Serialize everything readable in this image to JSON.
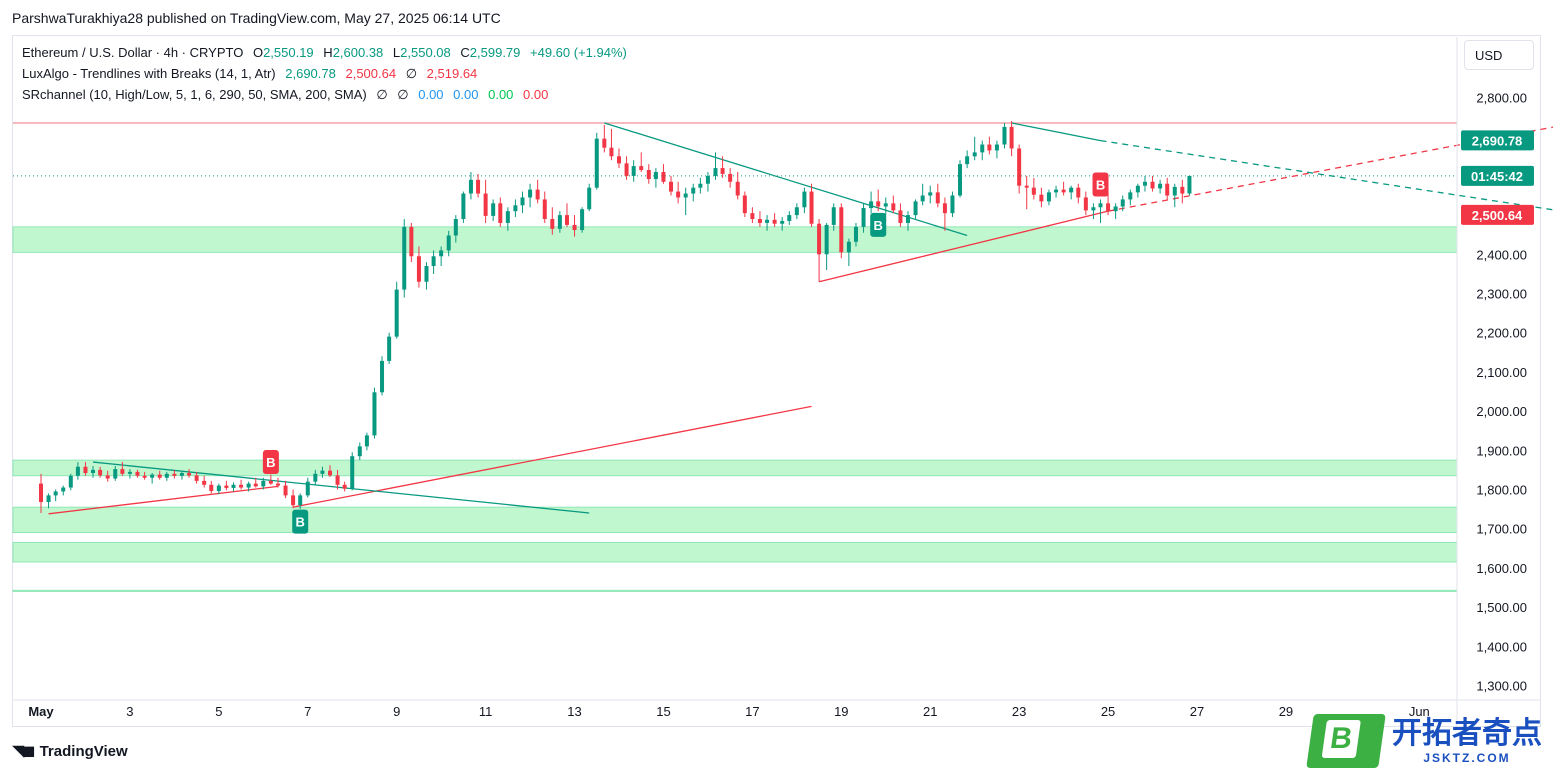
{
  "publisher_line": "ParshwaTurakhiya28 published on TradingView.com, May 27, 2025 06:14 UTC",
  "legend": {
    "symbol": "Ethereum / U.S. Dollar · 4h · CRYPTO",
    "o_label": "O",
    "o_value": "2,550.19",
    "h_label": "H",
    "h_value": "2,600.38",
    "l_label": "L",
    "l_value": "2,550.08",
    "c_label": "C",
    "c_value": "2,599.79",
    "change": "+49.60 (+1.94%)",
    "indicator1": "LuxAlgo - Trendlines with Breaks (14, 1, Atr)",
    "ind1_v1": "2,690.78",
    "ind1_v2": "2,500.64",
    "ind1_sym": "∅",
    "ind1_v3": "2,519.64",
    "indicator2": "SRchannel (10, High/Low, 5, 1, 6, 290, 50, SMA, 200, SMA)",
    "ind2_sym1": "∅",
    "ind2_sym2": "∅",
    "ind2_v1": "0.00",
    "ind2_v2": "0.00",
    "ind2_v3": "0.00",
    "ind2_v4": "0.00"
  },
  "currency_button": "USD",
  "branding": "TradingView",
  "watermark": {
    "logo_letter": "B",
    "name": "开拓者奇点",
    "url": "JSKTZ.COM"
  },
  "colors": {
    "up": "#089981",
    "down": "#f23645",
    "zone": "#b9f6ca",
    "resistance": "#f7a1a8"
  },
  "chart_data": {
    "type": "candlestick",
    "title": "Ethereum / U.S. Dollar · 4h · CRYPTO",
    "ylim": [
      1250,
      2900
    ],
    "xlim": [
      0,
      36
    ],
    "y_ticks": [
      2800,
      2700,
      2600,
      2500,
      2400,
      2300,
      2200,
      2100,
      2000,
      1900,
      1800,
      1700,
      1600,
      1500,
      1400,
      1300
    ],
    "y_tick_labels_extra": [
      "2,800.00",
      "2,400.00",
      "2,300.00",
      "2,200.00",
      "2,100.00",
      "2,000.00",
      "1,900.00",
      "1,800.00",
      "1,700.00",
      "1,600.00",
      "1,500.00",
      "1,400.00",
      "1,300.00"
    ],
    "x_ticks": [
      {
        "day": 1,
        "label": "May"
      },
      {
        "day": 3,
        "label": "3"
      },
      {
        "day": 5,
        "label": "5"
      },
      {
        "day": 7,
        "label": "7"
      },
      {
        "day": 9,
        "label": "9"
      },
      {
        "day": 11,
        "label": "11"
      },
      {
        "day": 13,
        "label": "13"
      },
      {
        "day": 15,
        "label": "15"
      },
      {
        "day": 17,
        "label": "17"
      },
      {
        "day": 19,
        "label": "19"
      },
      {
        "day": 21,
        "label": "21"
      },
      {
        "day": 23,
        "label": "23"
      },
      {
        "day": 25,
        "label": "25"
      },
      {
        "day": 27,
        "label": "27"
      },
      {
        "day": 29,
        "label": "29"
      },
      {
        "day": 32,
        "label": "Jun"
      }
    ],
    "candles": [
      [
        1.0,
        1815,
        1840,
        1740,
        1768
      ],
      [
        1.17,
        1768,
        1790,
        1752,
        1785
      ],
      [
        1.33,
        1785,
        1800,
        1770,
        1795
      ],
      [
        1.5,
        1795,
        1810,
        1785,
        1805
      ],
      [
        1.67,
        1805,
        1840,
        1798,
        1835
      ],
      [
        1.83,
        1835,
        1870,
        1825,
        1858
      ],
      [
        2.0,
        1858,
        1870,
        1835,
        1842
      ],
      [
        2.17,
        1842,
        1860,
        1830,
        1850
      ],
      [
        2.33,
        1850,
        1858,
        1830,
        1836
      ],
      [
        2.5,
        1836,
        1848,
        1820,
        1828
      ],
      [
        2.67,
        1828,
        1860,
        1822,
        1852
      ],
      [
        2.83,
        1852,
        1870,
        1835,
        1840
      ],
      [
        3.0,
        1840,
        1852,
        1828,
        1845
      ],
      [
        3.17,
        1845,
        1850,
        1830,
        1835
      ],
      [
        3.33,
        1835,
        1845,
        1825,
        1830
      ],
      [
        3.5,
        1830,
        1842,
        1815,
        1838
      ],
      [
        3.67,
        1838,
        1848,
        1825,
        1830
      ],
      [
        3.83,
        1830,
        1845,
        1822,
        1840
      ],
      [
        4.0,
        1840,
        1850,
        1828,
        1835
      ],
      [
        4.17,
        1835,
        1848,
        1825,
        1842
      ],
      [
        4.33,
        1842,
        1852,
        1830,
        1836
      ],
      [
        4.5,
        1836,
        1845,
        1815,
        1822
      ],
      [
        4.67,
        1822,
        1835,
        1805,
        1812
      ],
      [
        4.83,
        1812,
        1822,
        1790,
        1796
      ],
      [
        5.0,
        1796,
        1815,
        1788,
        1810
      ],
      [
        5.17,
        1810,
        1822,
        1798,
        1804
      ],
      [
        5.33,
        1804,
        1818,
        1795,
        1812
      ],
      [
        5.5,
        1812,
        1825,
        1800,
        1805
      ],
      [
        5.67,
        1805,
        1820,
        1795,
        1815
      ],
      [
        5.83,
        1815,
        1830,
        1805,
        1808
      ],
      [
        6.0,
        1808,
        1830,
        1800,
        1822
      ],
      [
        6.17,
        1822,
        1838,
        1812,
        1815
      ],
      [
        6.33,
        1815,
        1830,
        1805,
        1810
      ],
      [
        6.5,
        1810,
        1822,
        1778,
        1785
      ],
      [
        6.67,
        1785,
        1800,
        1752,
        1760
      ],
      [
        6.83,
        1760,
        1790,
        1750,
        1785
      ],
      [
        7.0,
        1785,
        1830,
        1780,
        1820
      ],
      [
        7.17,
        1820,
        1850,
        1812,
        1840
      ],
      [
        7.33,
        1840,
        1858,
        1830,
        1848
      ],
      [
        7.5,
        1848,
        1862,
        1832,
        1836
      ],
      [
        7.67,
        1836,
        1850,
        1800,
        1812
      ],
      [
        7.83,
        1812,
        1820,
        1795,
        1802
      ],
      [
        8.0,
        1802,
        1895,
        1798,
        1885
      ],
      [
        8.17,
        1885,
        1920,
        1875,
        1910
      ],
      [
        8.33,
        1910,
        1945,
        1900,
        1938
      ],
      [
        8.5,
        1938,
        2060,
        1930,
        2048
      ],
      [
        8.67,
        2048,
        2140,
        2040,
        2128
      ],
      [
        8.83,
        2128,
        2200,
        2120,
        2190
      ],
      [
        9.0,
        2190,
        2330,
        2185,
        2310
      ],
      [
        9.17,
        2310,
        2490,
        2290,
        2470
      ],
      [
        9.33,
        2470,
        2480,
        2380,
        2395
      ],
      [
        9.5,
        2395,
        2420,
        2315,
        2330
      ],
      [
        9.67,
        2330,
        2380,
        2310,
        2370
      ],
      [
        9.83,
        2370,
        2410,
        2350,
        2395
      ],
      [
        10.0,
        2395,
        2420,
        2370,
        2410
      ],
      [
        10.17,
        2410,
        2460,
        2395,
        2448
      ],
      [
        10.33,
        2448,
        2500,
        2430,
        2490
      ],
      [
        10.5,
        2490,
        2560,
        2480,
        2555
      ],
      [
        10.67,
        2555,
        2610,
        2540,
        2590
      ],
      [
        10.83,
        2590,
        2605,
        2545,
        2555
      ],
      [
        11.0,
        2555,
        2590,
        2480,
        2498
      ],
      [
        11.17,
        2498,
        2540,
        2485,
        2530
      ],
      [
        11.33,
        2530,
        2545,
        2470,
        2480
      ],
      [
        11.5,
        2480,
        2520,
        2460,
        2510
      ],
      [
        11.67,
        2510,
        2540,
        2495,
        2525
      ],
      [
        11.83,
        2525,
        2560,
        2505,
        2545
      ],
      [
        12.0,
        2545,
        2580,
        2520,
        2565
      ],
      [
        12.17,
        2565,
        2590,
        2530,
        2540
      ],
      [
        12.33,
        2540,
        2560,
        2480,
        2490
      ],
      [
        12.5,
        2490,
        2520,
        2450,
        2465
      ],
      [
        12.67,
        2465,
        2510,
        2455,
        2500
      ],
      [
        12.83,
        2500,
        2530,
        2470,
        2475
      ],
      [
        13.0,
        2475,
        2500,
        2445,
        2462
      ],
      [
        13.17,
        2462,
        2520,
        2455,
        2515
      ],
      [
        13.33,
        2515,
        2580,
        2510,
        2570
      ],
      [
        13.5,
        2570,
        2710,
        2565,
        2695
      ],
      [
        13.67,
        2695,
        2730,
        2660,
        2672
      ],
      [
        13.83,
        2672,
        2720,
        2640,
        2650
      ],
      [
        14.0,
        2650,
        2670,
        2620,
        2632
      ],
      [
        14.17,
        2632,
        2650,
        2590,
        2600
      ],
      [
        14.33,
        2600,
        2640,
        2585,
        2625
      ],
      [
        14.5,
        2625,
        2660,
        2610,
        2615
      ],
      [
        14.67,
        2615,
        2630,
        2580,
        2592
      ],
      [
        14.83,
        2592,
        2620,
        2570,
        2610
      ],
      [
        15.0,
        2610,
        2630,
        2580,
        2585
      ],
      [
        15.17,
        2585,
        2600,
        2550,
        2560
      ],
      [
        15.33,
        2560,
        2585,
        2530,
        2545
      ],
      [
        15.5,
        2545,
        2570,
        2500,
        2555
      ],
      [
        15.67,
        2555,
        2580,
        2535,
        2570
      ],
      [
        15.83,
        2570,
        2595,
        2555,
        2580
      ],
      [
        16.0,
        2580,
        2610,
        2560,
        2600
      ],
      [
        16.17,
        2600,
        2660,
        2590,
        2620
      ],
      [
        16.33,
        2620,
        2650,
        2595,
        2605
      ],
      [
        16.5,
        2605,
        2620,
        2570,
        2585
      ],
      [
        16.67,
        2585,
        2610,
        2540,
        2550
      ],
      [
        16.83,
        2550,
        2560,
        2495,
        2505
      ],
      [
        17.0,
        2505,
        2520,
        2480,
        2490
      ],
      [
        17.17,
        2490,
        2510,
        2470,
        2480
      ],
      [
        17.33,
        2480,
        2500,
        2460,
        2488
      ],
      [
        17.5,
        2488,
        2505,
        2470,
        2478
      ],
      [
        17.67,
        2478,
        2495,
        2460,
        2485
      ],
      [
        17.83,
        2485,
        2510,
        2475,
        2500
      ],
      [
        18.0,
        2500,
        2530,
        2490,
        2520
      ],
      [
        18.17,
        2520,
        2570,
        2505,
        2560
      ],
      [
        18.33,
        2560,
        2580,
        2470,
        2478
      ],
      [
        18.5,
        2478,
        2490,
        2330,
        2400
      ],
      [
        18.67,
        2400,
        2480,
        2360,
        2475
      ],
      [
        18.83,
        2475,
        2530,
        2460,
        2520
      ],
      [
        19.0,
        2520,
        2530,
        2390,
        2405
      ],
      [
        19.17,
        2405,
        2440,
        2370,
        2432
      ],
      [
        19.33,
        2432,
        2480,
        2420,
        2470
      ],
      [
        19.5,
        2470,
        2530,
        2455,
        2518
      ],
      [
        19.67,
        2518,
        2560,
        2505,
        2535
      ],
      [
        19.83,
        2535,
        2565,
        2510,
        2522
      ],
      [
        20.0,
        2522,
        2545,
        2500,
        2530
      ],
      [
        20.17,
        2530,
        2550,
        2505,
        2512
      ],
      [
        20.33,
        2512,
        2530,
        2470,
        2480
      ],
      [
        20.5,
        2480,
        2510,
        2460,
        2500
      ],
      [
        20.67,
        2500,
        2540,
        2490,
        2535
      ],
      [
        20.83,
        2535,
        2580,
        2525,
        2550
      ],
      [
        21.0,
        2550,
        2575,
        2530,
        2558
      ],
      [
        21.17,
        2558,
        2580,
        2520,
        2530
      ],
      [
        21.33,
        2530,
        2545,
        2460,
        2505
      ],
      [
        21.5,
        2505,
        2560,
        2495,
        2550
      ],
      [
        21.67,
        2550,
        2640,
        2545,
        2630
      ],
      [
        21.83,
        2630,
        2665,
        2620,
        2650
      ],
      [
        22.0,
        2650,
        2700,
        2640,
        2660
      ],
      [
        22.17,
        2660,
        2690,
        2640,
        2680
      ],
      [
        22.33,
        2680,
        2700,
        2655,
        2665
      ],
      [
        22.5,
        2665,
        2690,
        2645,
        2680
      ],
      [
        22.67,
        2680,
        2735,
        2670,
        2725
      ],
      [
        22.83,
        2725,
        2740,
        2650,
        2670
      ],
      [
        23.0,
        2670,
        2680,
        2555,
        2575
      ],
      [
        23.17,
        2575,
        2600,
        2515,
        2570
      ],
      [
        23.33,
        2570,
        2595,
        2540,
        2552
      ],
      [
        23.5,
        2552,
        2570,
        2520,
        2535
      ],
      [
        23.67,
        2535,
        2565,
        2525,
        2558
      ],
      [
        23.83,
        2558,
        2575,
        2545,
        2565
      ],
      [
        24.0,
        2565,
        2585,
        2550,
        2558
      ],
      [
        24.17,
        2558,
        2575,
        2540,
        2570
      ],
      [
        24.33,
        2570,
        2580,
        2530,
        2545
      ],
      [
        24.5,
        2545,
        2560,
        2500,
        2512
      ],
      [
        24.67,
        2512,
        2530,
        2490,
        2520
      ],
      [
        24.83,
        2520,
        2540,
        2480,
        2530
      ],
      [
        25.0,
        2530,
        2560,
        2500,
        2510
      ],
      [
        25.17,
        2510,
        2530,
        2490,
        2522
      ],
      [
        25.33,
        2522,
        2550,
        2510,
        2540
      ],
      [
        25.5,
        2540,
        2565,
        2525,
        2558
      ],
      [
        25.67,
        2558,
        2580,
        2545,
        2575
      ],
      [
        25.83,
        2575,
        2600,
        2560,
        2585
      ],
      [
        26.0,
        2585,
        2600,
        2560,
        2568
      ],
      [
        26.17,
        2568,
        2590,
        2555,
        2580
      ],
      [
        26.33,
        2580,
        2595,
        2540,
        2550
      ],
      [
        26.5,
        2550,
        2580,
        2520,
        2572
      ],
      [
        26.67,
        2572,
        2590,
        2530,
        2555
      ],
      [
        26.83,
        2555,
        2600,
        2550,
        2600
      ]
    ],
    "sr_zones": [
      {
        "low": 2405,
        "high": 2470
      },
      {
        "low": 1835,
        "high": 1875
      },
      {
        "low": 1690,
        "high": 1755
      },
      {
        "low": 1615,
        "high": 1665
      },
      {
        "low": 1540,
        "high": 1543
      }
    ],
    "resistance_level": 2735,
    "current_price_line": 2600,
    "trendlines": [
      {
        "color": "down",
        "points": [
          [
            1.17,
            1738
          ],
          [
            6.33,
            1808
          ]
        ]
      },
      {
        "color": "down",
        "points": [
          [
            6.67,
            1755
          ],
          [
            18.33,
            2012
          ]
        ]
      },
      {
        "color": "up",
        "points": [
          [
            2.17,
            1870
          ],
          [
            13.33,
            1740
          ]
        ]
      },
      {
        "color": "up",
        "points": [
          [
            13.67,
            2735
          ],
          [
            21.83,
            2448
          ]
        ]
      },
      {
        "color": "down",
        "points": [
          [
            18.5,
            2330
          ],
          [
            25.0,
            2510
          ]
        ]
      },
      {
        "color": "down",
        "dashed": true,
        "points": [
          [
            25.0,
            2510
          ],
          [
            35.5,
            2735
          ]
        ]
      },
      {
        "color": "up",
        "points": [
          [
            22.83,
            2735
          ],
          [
            24.83,
            2690
          ]
        ]
      },
      {
        "color": "up",
        "dashed": true,
        "points": [
          [
            24.83,
            2690
          ],
          [
            35.5,
            2505
          ]
        ]
      }
    ],
    "signals": [
      {
        "x": 6.17,
        "y": 1870,
        "label": "B",
        "color": "down"
      },
      {
        "x": 6.83,
        "y": 1718,
        "label": "B",
        "color": "up"
      },
      {
        "x": 19.83,
        "y": 2475,
        "label": "B",
        "color": "up"
      },
      {
        "x": 24.83,
        "y": 2578,
        "label": "B",
        "color": "down"
      }
    ],
    "price_labels": [
      {
        "value": 2690.78,
        "text": "2,690.78",
        "color": "up"
      },
      {
        "value": 2600,
        "text": "01:45:42",
        "color": "up"
      },
      {
        "value": 2500.64,
        "text": "2,500.64",
        "color": "down"
      }
    ]
  }
}
